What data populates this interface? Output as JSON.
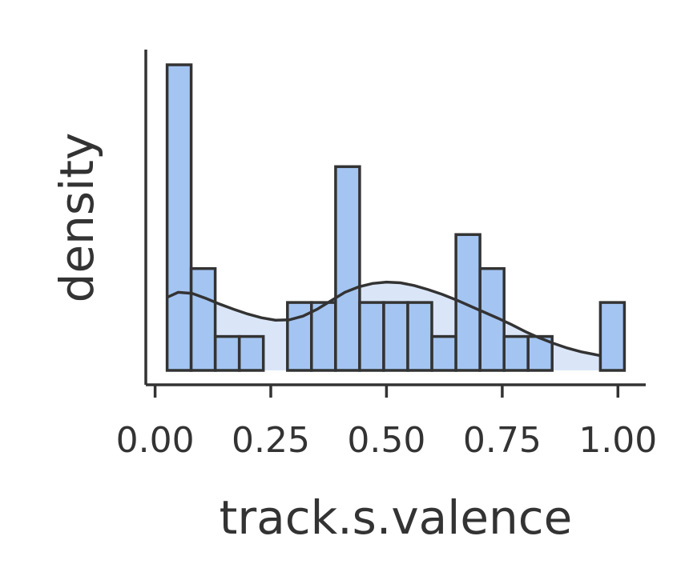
{
  "chart_data": {
    "type": "bar",
    "subtype": "histogram-with-kde",
    "title": "",
    "xlabel": "track.s.valence",
    "ylabel": "density",
    "xlim": [
      -0.02,
      1.06
    ],
    "ylim": [
      -0.4,
      9.5
    ],
    "xticks": [
      0.0,
      0.25,
      0.5,
      0.75,
      1.0
    ],
    "xtick_labels": [
      "0.00",
      "0.25",
      "0.50",
      "0.75",
      "1.00"
    ],
    "show_y_ticks": false,
    "grid": false,
    "colors": {
      "bar_fill": "#a4c5f2",
      "bar_edge": "#333333",
      "kde_fill": "#dae6f8",
      "kde_line": "#333333",
      "axis": "#333333"
    },
    "bins": [
      {
        "x0": 0.026,
        "x1": 0.078,
        "value": 9.0
      },
      {
        "x0": 0.078,
        "x1": 0.13,
        "value": 3.0
      },
      {
        "x0": 0.13,
        "x1": 0.182,
        "value": 1.0
      },
      {
        "x0": 0.182,
        "x1": 0.234,
        "value": 1.0
      },
      {
        "x0": 0.234,
        "x1": 0.286,
        "value": 0.0
      },
      {
        "x0": 0.286,
        "x1": 0.338,
        "value": 2.0
      },
      {
        "x0": 0.338,
        "x1": 0.39,
        "value": 2.0
      },
      {
        "x0": 0.39,
        "x1": 0.442,
        "value": 6.0
      },
      {
        "x0": 0.442,
        "x1": 0.494,
        "value": 2.0
      },
      {
        "x0": 0.494,
        "x1": 0.546,
        "value": 2.0
      },
      {
        "x0": 0.546,
        "x1": 0.598,
        "value": 2.0
      },
      {
        "x0": 0.598,
        "x1": 0.65,
        "value": 1.0
      },
      {
        "x0": 0.65,
        "x1": 0.702,
        "value": 4.0
      },
      {
        "x0": 0.702,
        "x1": 0.754,
        "value": 3.0
      },
      {
        "x0": 0.754,
        "x1": 0.806,
        "value": 1.0
      },
      {
        "x0": 0.806,
        "x1": 0.858,
        "value": 1.0
      },
      {
        "x0": 0.858,
        "x1": 0.91,
        "value": 0.0
      },
      {
        "x0": 0.91,
        "x1": 0.962,
        "value": 0.0
      },
      {
        "x0": 0.962,
        "x1": 1.014,
        "value": 2.0
      }
    ],
    "kde": {
      "x": [
        0.026,
        0.05,
        0.08,
        0.11,
        0.14,
        0.17,
        0.2,
        0.23,
        0.26,
        0.29,
        0.32,
        0.35,
        0.38,
        0.41,
        0.44,
        0.47,
        0.5,
        0.53,
        0.56,
        0.59,
        0.62,
        0.65,
        0.68,
        0.71,
        0.74,
        0.77,
        0.8,
        0.83,
        0.86,
        0.89,
        0.92,
        0.95,
        0.96
      ],
      "y": [
        2.15,
        2.3,
        2.27,
        2.12,
        1.95,
        1.8,
        1.66,
        1.55,
        1.48,
        1.49,
        1.6,
        1.8,
        2.05,
        2.3,
        2.46,
        2.56,
        2.6,
        2.58,
        2.5,
        2.38,
        2.24,
        2.08,
        1.9,
        1.72,
        1.54,
        1.35,
        1.14,
        0.96,
        0.8,
        0.66,
        0.55,
        0.47,
        0.44
      ]
    }
  }
}
